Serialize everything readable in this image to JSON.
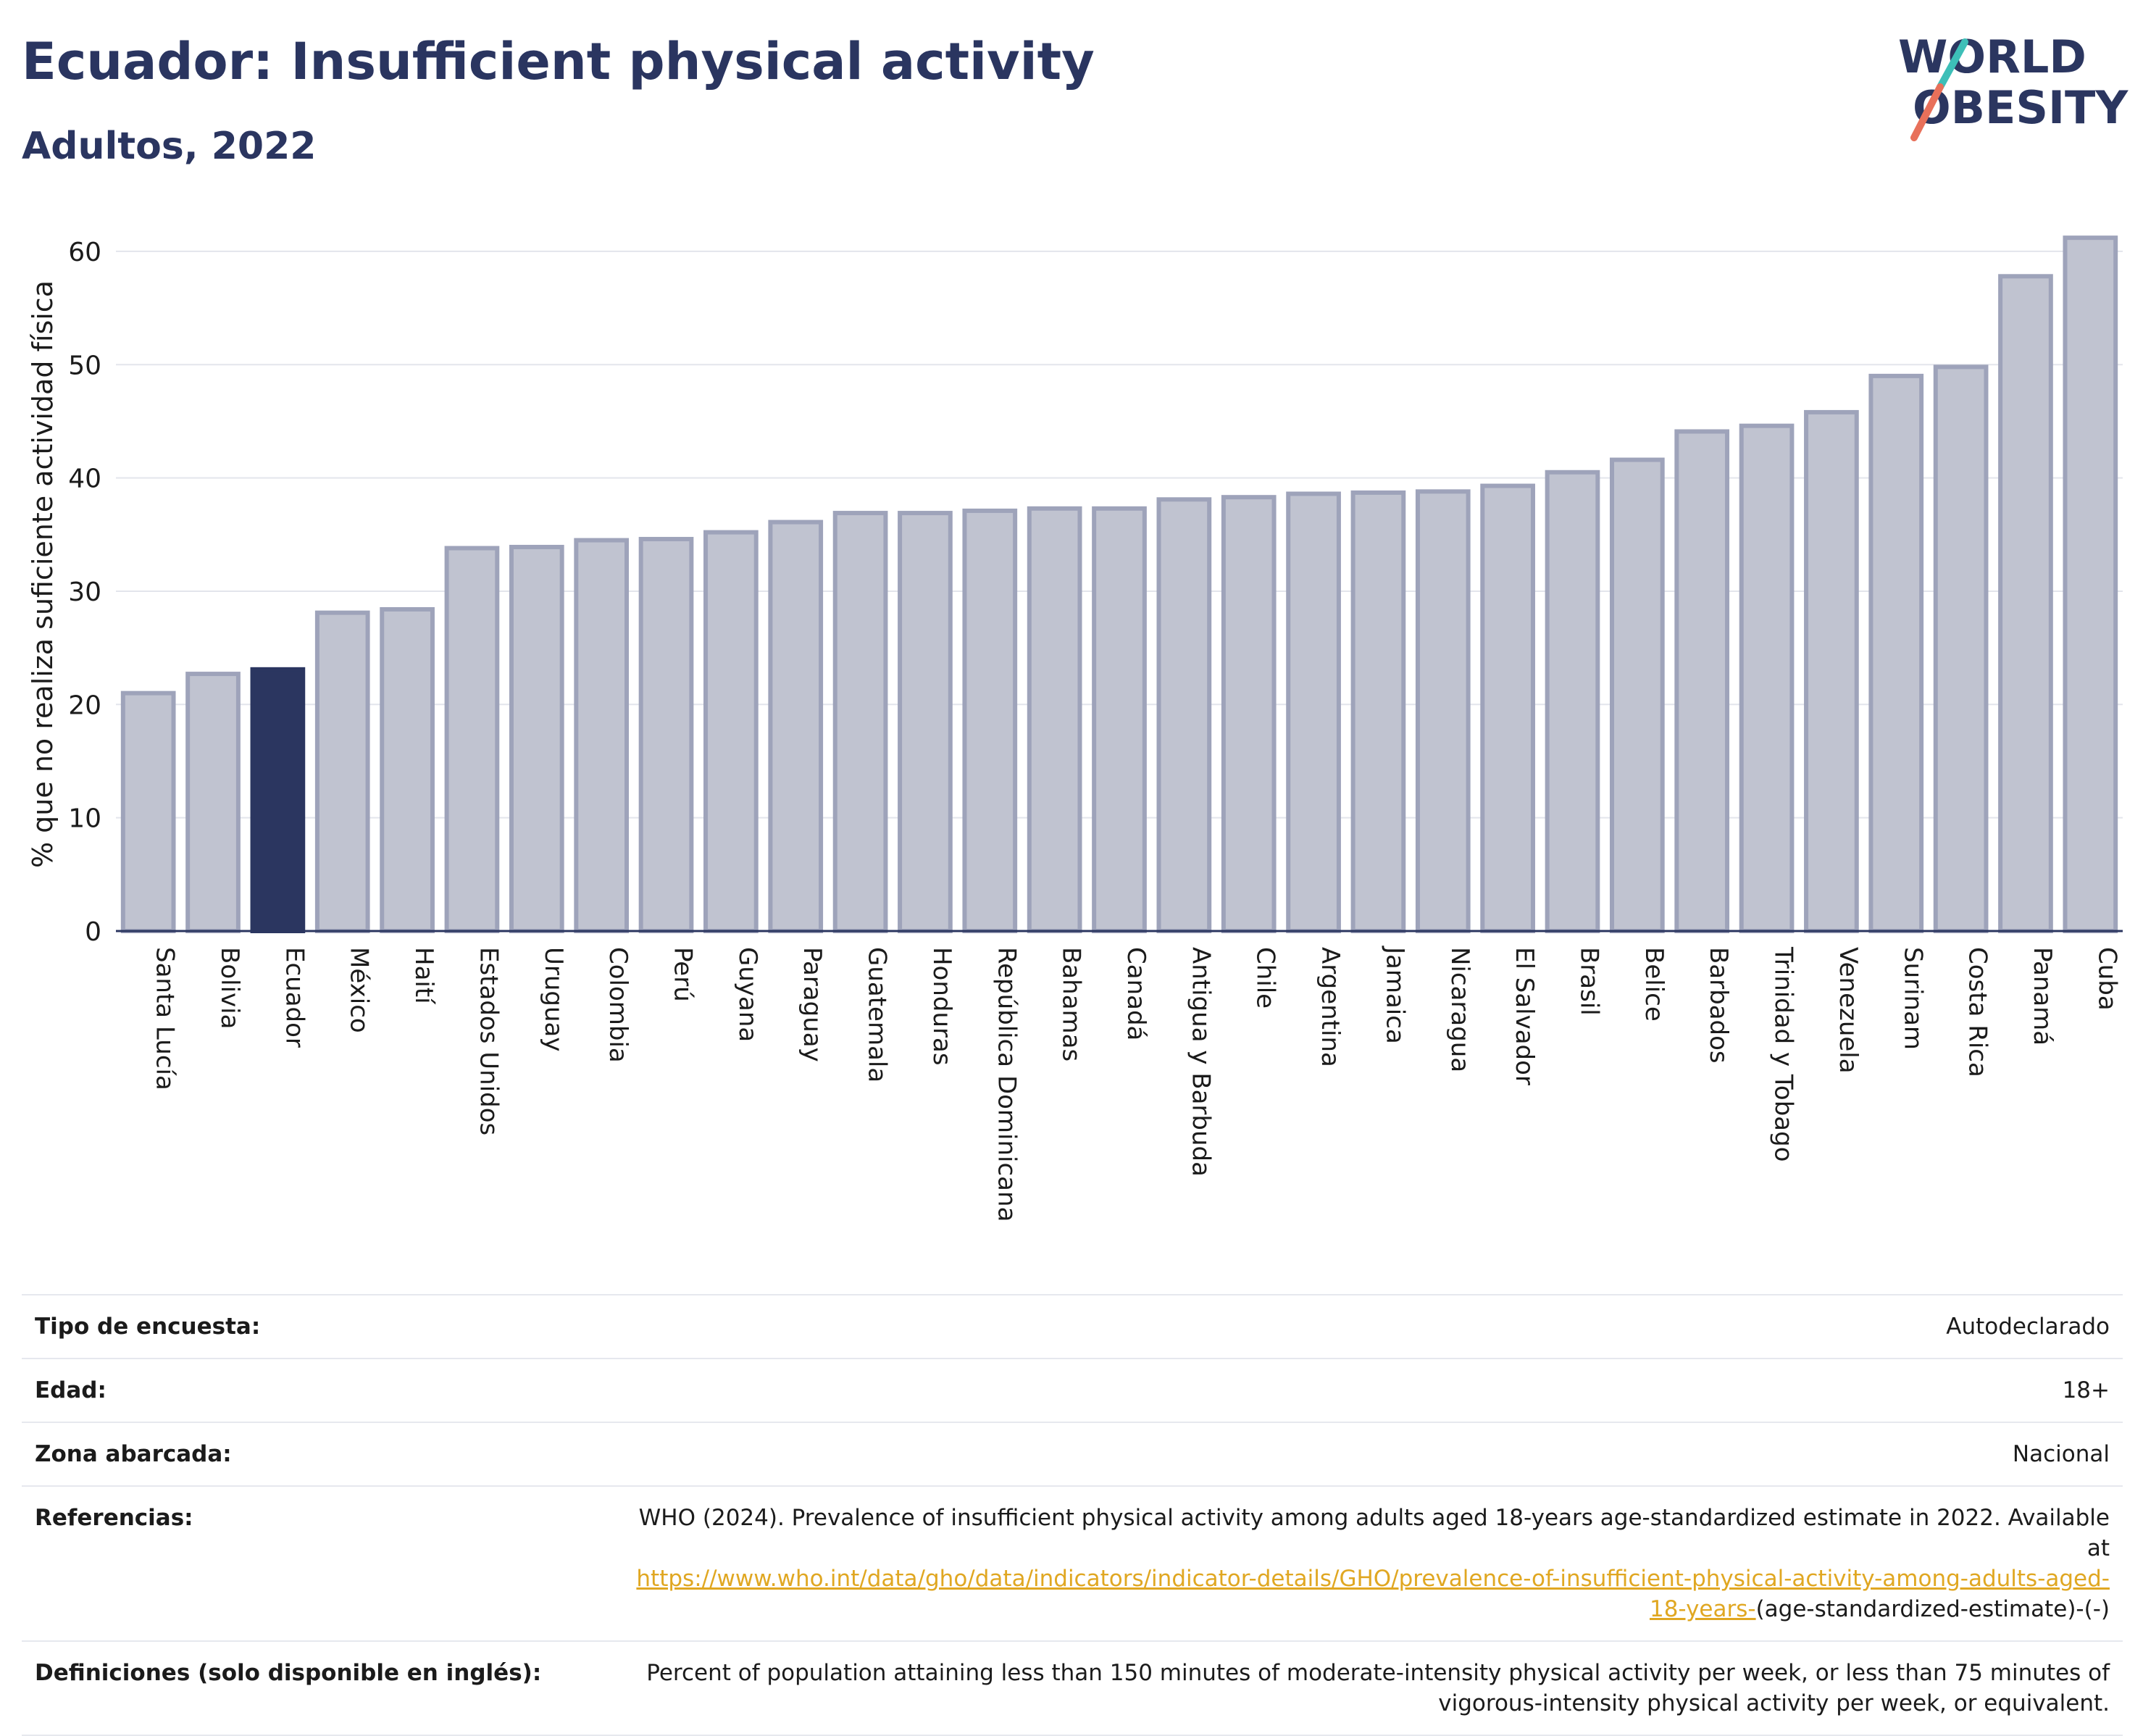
{
  "header": {
    "title": "Ecuador: Insufficient physical activity",
    "subtitle": "Adultos, 2022",
    "logo_line1": "WORLD",
    "logo_line2": "OBESITY"
  },
  "colors": {
    "highlight": "#2b3660",
    "bar": "#c0c3d0",
    "bar_edge": "#9ea3ba",
    "logo_teal": "#3dbfb8",
    "logo_coral": "#e8705a",
    "link": "#e0a722"
  },
  "chart_data": {
    "type": "bar",
    "ylabel": "% que no realiza suficiente actividad física",
    "xlabel": "",
    "ylim": [
      0,
      63
    ],
    "yticks": [
      0,
      10,
      20,
      30,
      40,
      50,
      60
    ],
    "grid": true,
    "highlight_category": "Ecuador",
    "categories": [
      "Santa Lucía",
      "Bolivia",
      "Ecuador",
      "México",
      "Haití",
      "Estados Unidos",
      "Uruguay",
      "Colombia",
      "Perú",
      "Guyana",
      "Paraguay",
      "Guatemala",
      "Honduras",
      "República Dominicana",
      "Bahamas",
      "Canadá",
      "Antigua y Barbuda",
      "Chile",
      "Argentina",
      "Jamaica",
      "Nicaragua",
      "El Salvador",
      "Brasil",
      "Belice",
      "Barbados",
      "Trinidad y Tobago",
      "Venezuela",
      "Surinam",
      "Costa Rica",
      "Panamá",
      "Cuba"
    ],
    "values": [
      21.0,
      22.7,
      23.1,
      28.1,
      28.4,
      33.8,
      33.9,
      34.5,
      34.6,
      35.2,
      36.1,
      36.9,
      36.9,
      37.1,
      37.3,
      37.3,
      38.1,
      38.3,
      38.6,
      38.7,
      38.8,
      39.3,
      40.5,
      41.6,
      44.1,
      44.6,
      45.8,
      49.0,
      49.8,
      57.8,
      61.2
    ]
  },
  "meta": {
    "rows": [
      {
        "label": "Tipo de encuesta:",
        "value": "Autodeclarado"
      },
      {
        "label": "Edad:",
        "value": "18+"
      },
      {
        "label": "Zona abarcada:",
        "value": "Nacional"
      }
    ],
    "references": {
      "label": "Referencias:",
      "text": "WHO (2024). Prevalence of insufficient physical activity among adults aged 18-years age-standardized estimate in 2022. Available at",
      "link": "https://www.who.int/data/gho/data/indicators/indicator-details/GHO/prevalence-of-insufficient-physical-activity-among-adults-aged-18-years-",
      "suffix": "(age-standardized-estimate)-(-)"
    },
    "definitions": {
      "label": "Definiciones (solo disponible en inglés):",
      "value": "Percent of population attaining less than 150 minutes of moderate-intensity physical activity per week, or less than 75 minutes of vigorous-intensity physical activity per week, or equivalent."
    }
  }
}
